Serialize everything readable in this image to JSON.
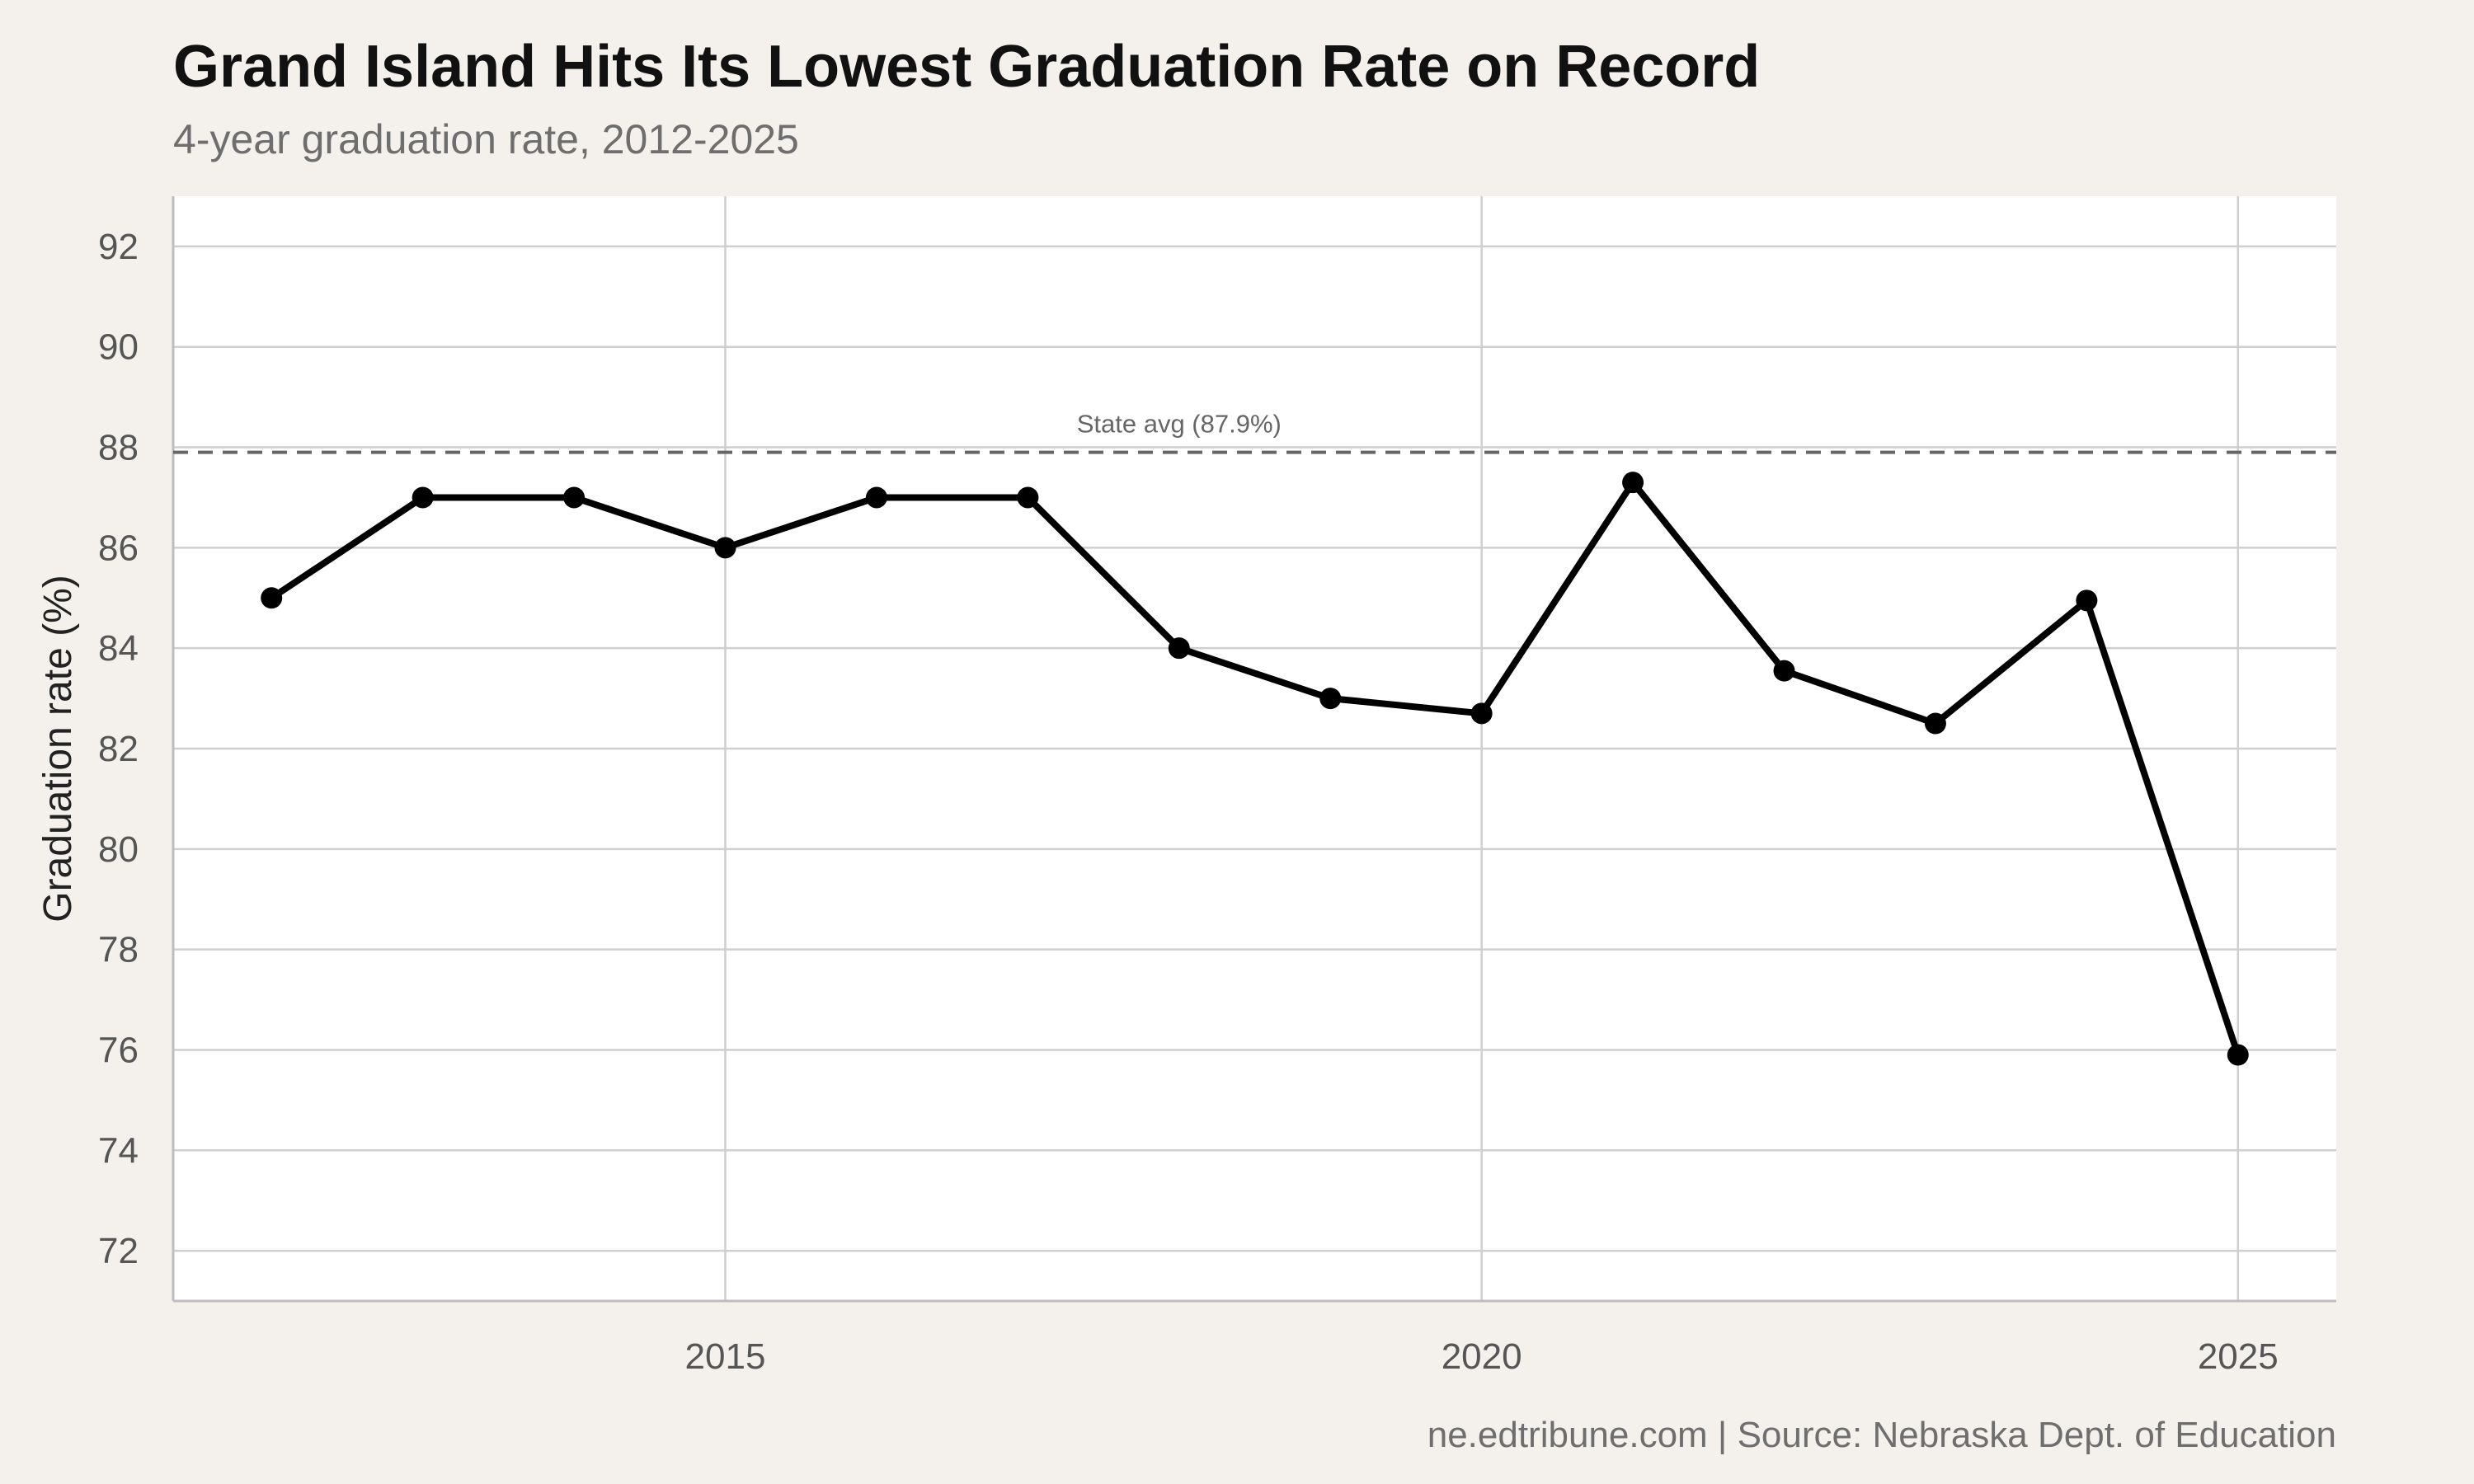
{
  "chart_data": {
    "type": "line",
    "title": "Grand Island Hits Its Lowest Graduation Rate on Record",
    "subtitle": "4-year graduation rate, 2012-2025",
    "xlabel": "",
    "ylabel": "Graduation rate (%)",
    "caption": "ne.edtribune.com | Source: Nebraska Dept. of Education",
    "xlim": [
      2011.35,
      2025.65
    ],
    "ylim": [
      71,
      93
    ],
    "x_ticks": [
      2015,
      2020,
      2025
    ],
    "y_ticks": [
      72,
      74,
      76,
      78,
      80,
      82,
      84,
      86,
      88,
      90,
      92
    ],
    "grid": true,
    "line_color": "#000000",
    "series": [
      {
        "x": [
          2012,
          2013,
          2014,
          2015,
          2016,
          2017,
          2018,
          2019,
          2020,
          2021,
          2022,
          2023,
          2024,
          2025
        ],
        "values": [
          85.0,
          87.0,
          87.0,
          86.0,
          87.0,
          87.0,
          84.0,
          83.0,
          82.7,
          87.3,
          83.55,
          82.5,
          84.95,
          75.9
        ]
      }
    ],
    "reference_line": {
      "value": 87.9,
      "label": "State avg (87.9%)",
      "label_x": 2018,
      "style": "dashed",
      "color": "#666666"
    }
  }
}
